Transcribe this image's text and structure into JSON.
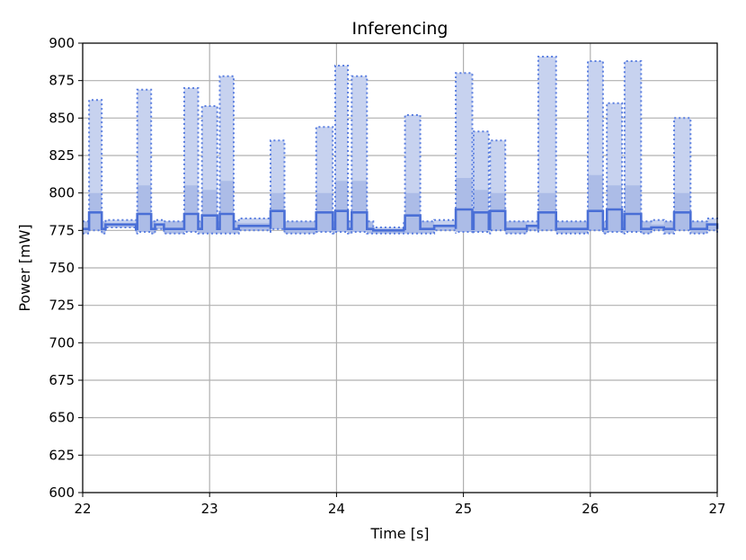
{
  "chart_data": {
    "type": "area",
    "title": "Inferencing",
    "xlabel": "Time [s]",
    "ylabel": "Power [mW]",
    "xlim": [
      22,
      27
    ],
    "ylim": [
      600,
      900
    ],
    "xticks": [
      22,
      23,
      24,
      25,
      26,
      27
    ],
    "yticks": [
      600,
      625,
      650,
      675,
      700,
      725,
      750,
      775,
      800,
      825,
      850,
      875,
      900
    ],
    "grid": true,
    "colors": {
      "max_fill": "#c7d2ef",
      "max_line": "#5b7fe0",
      "p95_fill": "#a9b9e6",
      "mean_line": "#4a6fd6"
    },
    "baseline": {
      "min": 773,
      "max": 781,
      "mean": 776
    },
    "bursts": [
      {
        "start": 22.05,
        "end": 22.15,
        "max": 862,
        "upper": 800,
        "mean": 787,
        "min": 775
      },
      {
        "start": 22.18,
        "end": 22.42,
        "max": 782,
        "upper": 779,
        "mean": 779,
        "min": 777
      },
      {
        "start": 22.43,
        "end": 22.54,
        "max": 869,
        "upper": 805,
        "mean": 786,
        "min": 774
      },
      {
        "start": 22.57,
        "end": 22.64,
        "max": 782,
        "upper": 779,
        "mean": 779,
        "min": 776
      },
      {
        "start": 22.8,
        "end": 22.91,
        "max": 870,
        "upper": 805,
        "mean": 786,
        "min": 774
      },
      {
        "start": 22.94,
        "end": 23.06,
        "max": 858,
        "upper": 802,
        "mean": 785,
        "min": 773
      },
      {
        "start": 23.08,
        "end": 23.19,
        "max": 878,
        "upper": 808,
        "mean": 786,
        "min": 773
      },
      {
        "start": 23.23,
        "end": 23.48,
        "max": 783,
        "upper": 780,
        "mean": 778,
        "min": 775
      },
      {
        "start": 23.48,
        "end": 23.59,
        "max": 835,
        "upper": 800,
        "mean": 788,
        "min": 776
      },
      {
        "start": 23.84,
        "end": 23.97,
        "max": 844,
        "upper": 800,
        "mean": 787,
        "min": 774
      },
      {
        "start": 23.99,
        "end": 24.09,
        "max": 885,
        "upper": 808,
        "mean": 788,
        "min": 774
      },
      {
        "start": 24.12,
        "end": 24.24,
        "max": 878,
        "upper": 808,
        "mean": 787,
        "min": 774
      },
      {
        "start": 24.29,
        "end": 24.53,
        "max": 777,
        "upper": 776,
        "mean": 775,
        "min": 773
      },
      {
        "start": 24.54,
        "end": 24.66,
        "max": 852,
        "upper": 800,
        "mean": 785,
        "min": 773
      },
      {
        "start": 24.77,
        "end": 24.94,
        "max": 782,
        "upper": 779,
        "mean": 778,
        "min": 775
      },
      {
        "start": 24.94,
        "end": 25.07,
        "max": 880,
        "upper": 810,
        "mean": 789,
        "min": 774
      },
      {
        "start": 25.08,
        "end": 25.2,
        "max": 841,
        "upper": 802,
        "mean": 787,
        "min": 774
      },
      {
        "start": 25.21,
        "end": 25.33,
        "max": 835,
        "upper": 800,
        "mean": 788,
        "min": 775
      },
      {
        "start": 25.5,
        "end": 25.59,
        "max": 781,
        "upper": 779,
        "mean": 778,
        "min": 775
      },
      {
        "start": 25.59,
        "end": 25.73,
        "max": 891,
        "upper": 800,
        "mean": 787,
        "min": 775
      },
      {
        "start": 25.98,
        "end": 26.1,
        "max": 888,
        "upper": 812,
        "mean": 788,
        "min": 775
      },
      {
        "start": 26.13,
        "end": 26.25,
        "max": 860,
        "upper": 805,
        "mean": 789,
        "min": 774
      },
      {
        "start": 26.27,
        "end": 26.4,
        "max": 888,
        "upper": 805,
        "mean": 786,
        "min": 774
      },
      {
        "start": 26.48,
        "end": 26.58,
        "max": 782,
        "upper": 779,
        "mean": 777,
        "min": 775
      },
      {
        "start": 26.66,
        "end": 26.79,
        "max": 850,
        "upper": 800,
        "mean": 787,
        "min": 775
      },
      {
        "start": 26.92,
        "end": 27.0,
        "max": 783,
        "upper": 780,
        "mean": 779,
        "min": 775
      }
    ]
  }
}
